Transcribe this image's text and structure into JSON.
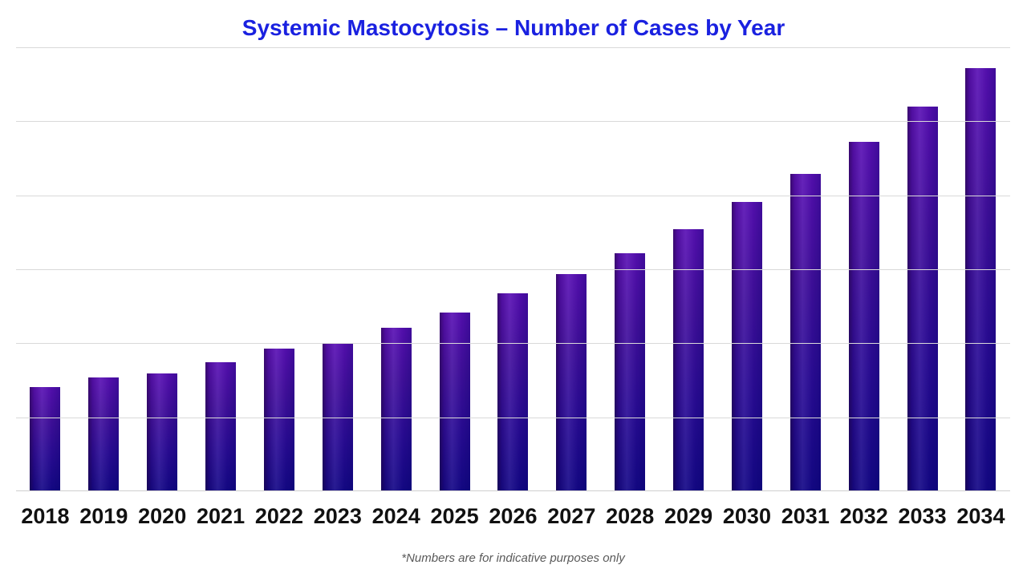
{
  "title": "Systemic Mastocytosis – Number of Cases by Year",
  "footnote": "*Numbers are for indicative purposes only",
  "colors": {
    "title": "#1a21e0",
    "bar_gradient_top": "#5a10b5",
    "bar_gradient_bottom": "#140887",
    "gridline": "#d9d9d9",
    "baseline": "#cfcfcf",
    "axis_label": "#111111",
    "footnote": "#5a5a5a",
    "background": "#ffffff"
  },
  "chart_data": {
    "type": "bar",
    "title": "Systemic Mastocytosis – Number of Cases by Year",
    "categories": [
      "2018",
      "2019",
      "2020",
      "2021",
      "2022",
      "2023",
      "2024",
      "2025",
      "2026",
      "2027",
      "2028",
      "2029",
      "2030",
      "2031",
      "2032",
      "2033",
      "2034"
    ],
    "values": [
      1.41,
      1.54,
      1.59,
      1.74,
      1.93,
      2.0,
      2.21,
      2.42,
      2.67,
      2.93,
      3.22,
      3.54,
      3.91,
      4.29,
      4.72,
      5.2,
      5.72
    ],
    "xlabel": "",
    "ylabel": "",
    "ylim": [
      0,
      6
    ],
    "grid": true,
    "gridline_count": 7,
    "y_axis_tick_labels_visible": false,
    "legend_position": "none",
    "footnote": "*Numbers are for indicative purposes only"
  }
}
